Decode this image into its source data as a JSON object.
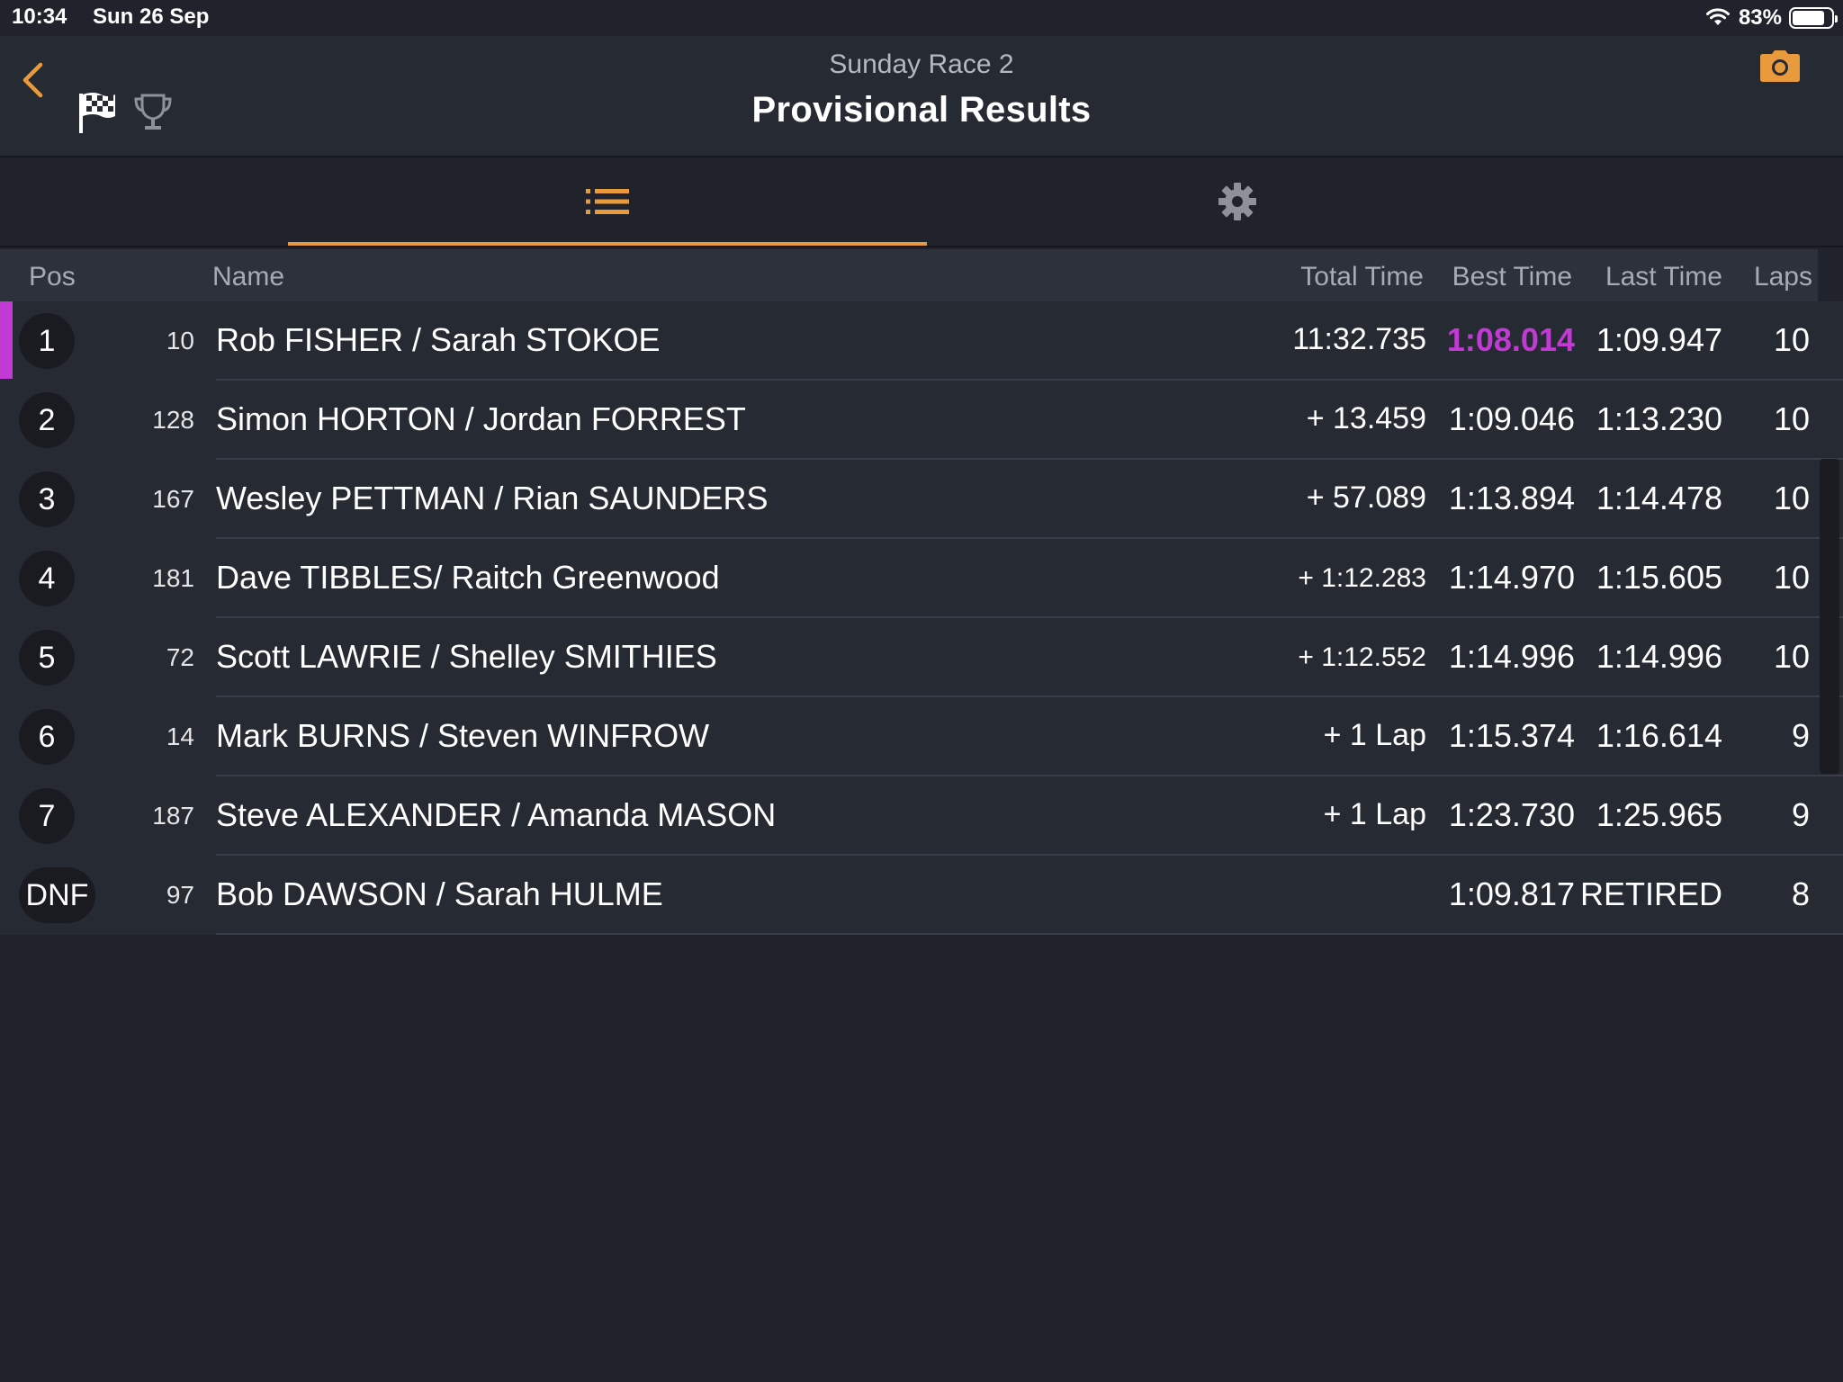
{
  "status_bar": {
    "time": "10:34",
    "date": "Sun 26 Sep",
    "battery_percent": "83%",
    "battery_level": 0.83
  },
  "header": {
    "subtitle": "Sunday Race 2",
    "title": "Provisional Results",
    "accent_color": "#e89a3c"
  },
  "tabs": [
    {
      "name": "list",
      "icon": "list-icon",
      "active": true
    },
    {
      "name": "settings",
      "icon": "gear-icon",
      "active": false
    }
  ],
  "table": {
    "headers": {
      "pos": "Pos",
      "name": "Name",
      "total": "Total Time",
      "best": "Best Time",
      "last": "Last Time",
      "laps": "Laps"
    },
    "fastest_color": "#c13ad4",
    "rows": [
      {
        "pos": "1",
        "num": "10",
        "name": "Rob FISHER / Sarah STOKOE",
        "total": "11:32.735",
        "best": "1:08.014",
        "last": "1:09.947",
        "laps": "10"
      },
      {
        "pos": "2",
        "num": "128",
        "name": "Simon HORTON / Jordan FORREST",
        "total": "+ 13.459",
        "best": "1:09.046",
        "last": "1:13.230",
        "laps": "10"
      },
      {
        "pos": "3",
        "num": "167",
        "name": "Wesley PETTMAN / Rian SAUNDERS",
        "total": "+ 57.089",
        "best": "1:13.894",
        "last": "1:14.478",
        "laps": "10"
      },
      {
        "pos": "4",
        "num": "181",
        "name": "Dave TIBBLES/ Raitch Greenwood",
        "total": "+ 1:12.283",
        "best": "1:14.970",
        "last": "1:15.605",
        "laps": "10"
      },
      {
        "pos": "5",
        "num": "72",
        "name": "Scott LAWRIE / Shelley SMITHIES",
        "total": "+ 1:12.552",
        "best": "1:14.996",
        "last": "1:14.996",
        "laps": "10"
      },
      {
        "pos": "6",
        "num": "14",
        "name": "Mark BURNS / Steven WINFROW",
        "total": "+ 1 Lap",
        "best": "1:15.374",
        "last": "1:16.614",
        "laps": "9"
      },
      {
        "pos": "7",
        "num": "187",
        "name": "Steve ALEXANDER / Amanda MASON",
        "total": "+ 1 Lap",
        "best": "1:23.730",
        "last": "1:25.965",
        "laps": "9"
      },
      {
        "pos": "DNF",
        "num": "97",
        "name": "Bob DAWSON / Sarah HULME",
        "total": "",
        "best": "1:09.817",
        "last": "RETIRED",
        "laps": "8"
      }
    ]
  }
}
